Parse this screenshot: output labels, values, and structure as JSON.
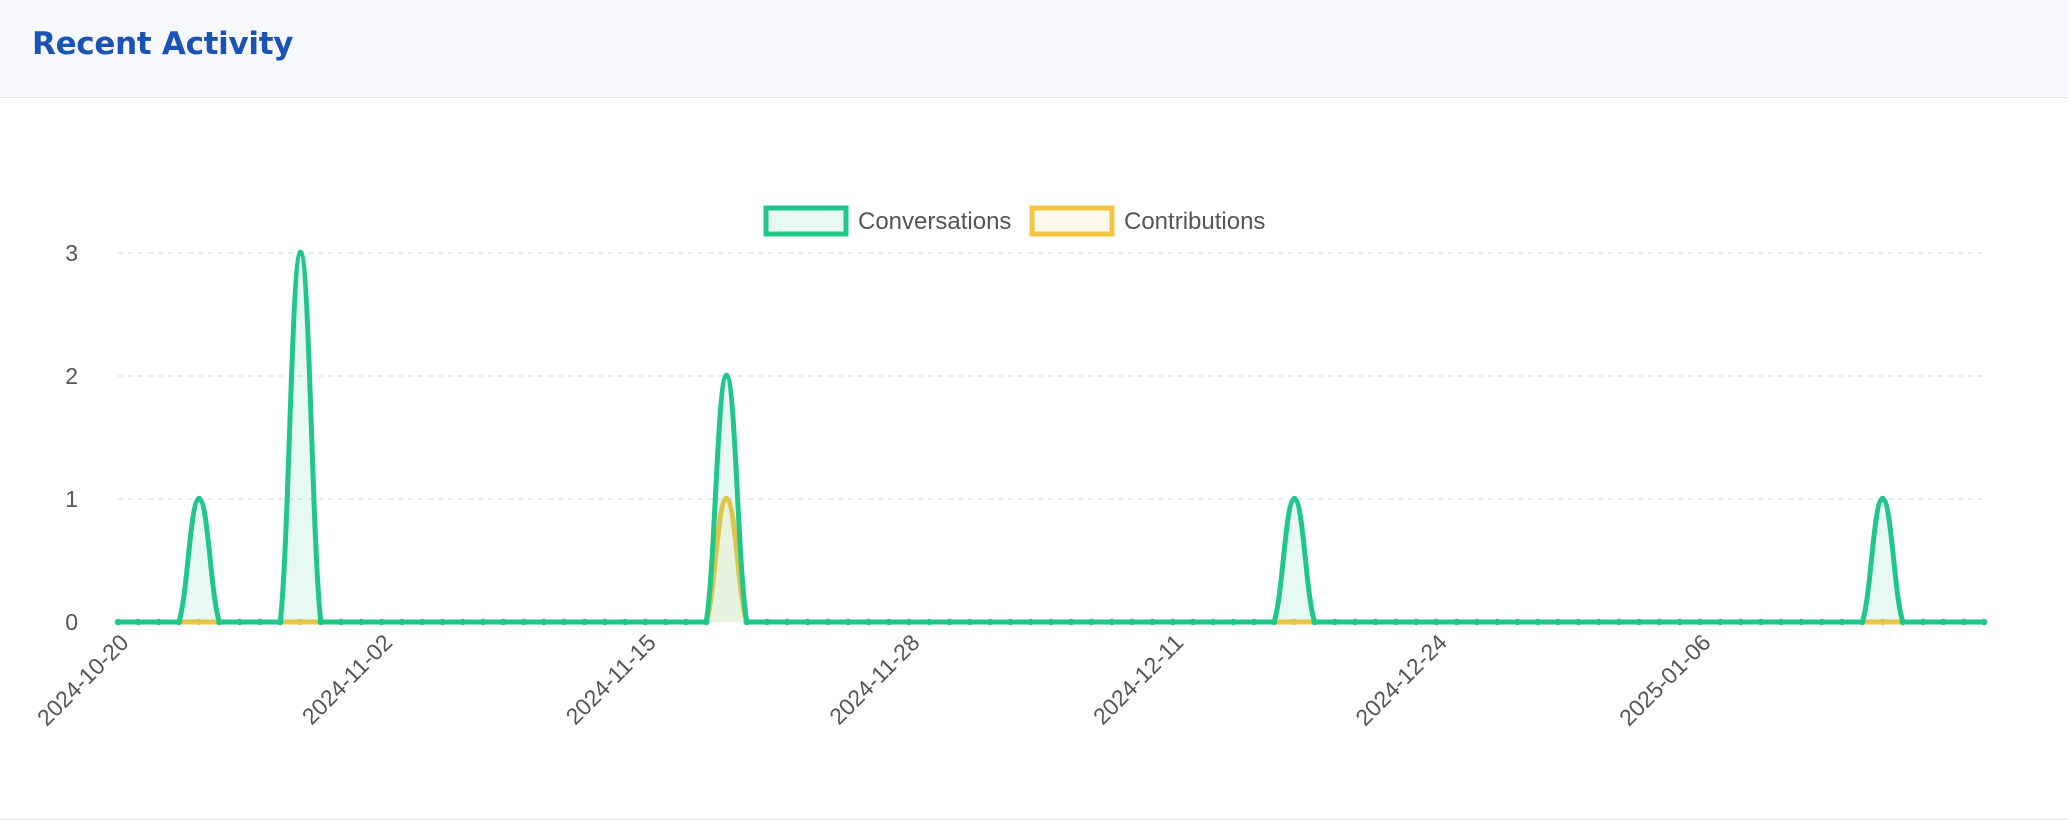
{
  "header": {
    "title": "Recent Activity"
  },
  "colors": {
    "conversations": "#21c789",
    "contributions": "#f4c443",
    "grid": "#e6e6e6",
    "text": "#555555"
  },
  "chart_data": {
    "type": "area",
    "x_start": "2024-10-20",
    "x_end": "2025-01-20",
    "x_tick_labels": [
      "2024-10-20",
      "2024-11-02",
      "2024-11-15",
      "2024-11-28",
      "2024-12-11",
      "2024-12-24",
      "2025-01-06"
    ],
    "y_ticks": [
      "0",
      "1",
      "2",
      "3"
    ],
    "ylim": [
      0,
      3
    ],
    "grid": true,
    "legend_position": "top-center",
    "series": [
      {
        "name": "Conversations",
        "key": "conversations",
        "points": [
          {
            "date": "2024-10-24",
            "value": 1
          },
          {
            "date": "2024-10-29",
            "value": 3
          },
          {
            "date": "2024-11-19",
            "value": 2
          },
          {
            "date": "2024-12-17",
            "value": 1
          },
          {
            "date": "2025-01-15",
            "value": 1
          }
        ]
      },
      {
        "name": "Contributions",
        "key": "contributions",
        "points": [
          {
            "date": "2024-11-19",
            "value": 1
          }
        ]
      }
    ]
  }
}
